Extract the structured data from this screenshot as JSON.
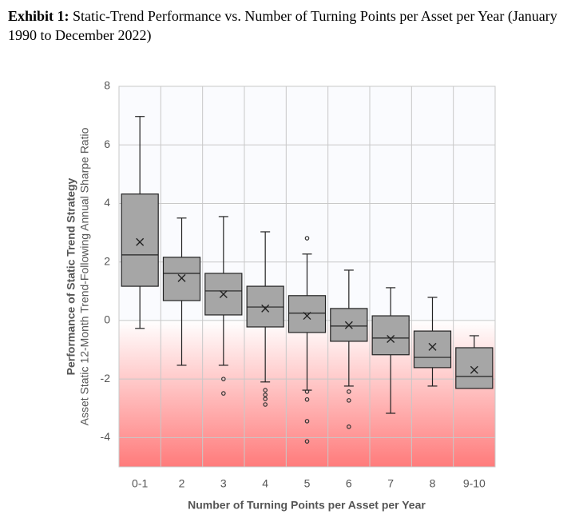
{
  "chart_data": {
    "type": "box",
    "title_label": "Exhibit 1:",
    "title": "Static-Trend Performance vs. Number of Turning Points per Asset per Year (January 1990 to December 2022)",
    "y_label": "Performance of Static Trend Strategy",
    "y_sublabel": "Asset Static 12-Month Trend-Following Annual Sharpe Ratio",
    "x_label": "Number of Turning Points per Asset per Year",
    "categories": [
      "0-1",
      "2",
      "3",
      "4",
      "5",
      "6",
      "7",
      "8",
      "9-10"
    ],
    "color": "#a6a6a6",
    "grid": true,
    "ylim": [
      -5,
      8
    ],
    "yticks": [
      -4,
      -2,
      0,
      2,
      4,
      6,
      8
    ],
    "boxes": [
      {
        "whislo": -0.27,
        "q1": 1.17,
        "med": 2.24,
        "q3": 4.32,
        "whishi": 6.97,
        "mean": 2.68,
        "fliers": []
      },
      {
        "whislo": -1.53,
        "q1": 0.68,
        "med": 1.61,
        "q3": 2.16,
        "whishi": 3.5,
        "mean": 1.45,
        "fliers": []
      },
      {
        "whislo": -1.53,
        "q1": 0.19,
        "med": 1.01,
        "q3": 1.61,
        "whishi": 3.55,
        "mean": 0.9,
        "fliers": [
          -2.0,
          -2.49
        ]
      },
      {
        "whislo": -2.1,
        "q1": -0.22,
        "med": 0.46,
        "q3": 1.17,
        "whishi": 3.03,
        "mean": 0.41,
        "fliers": [
          -2.38,
          -2.54,
          -2.68,
          -2.87
        ]
      },
      {
        "whislo": -2.38,
        "q1": -0.41,
        "med": 0.25,
        "q3": 0.85,
        "whishi": 2.27,
        "mean": 0.16,
        "fliers": [
          2.81,
          -2.43,
          -2.7,
          -3.44,
          -4.13
        ]
      },
      {
        "whislo": -2.24,
        "q1": -0.71,
        "med": -0.19,
        "q3": 0.41,
        "whishi": 1.72,
        "mean": -0.16,
        "fliers": [
          -2.43,
          -2.73,
          -3.63
        ]
      },
      {
        "whislo": -3.17,
        "q1": -1.17,
        "med": -0.6,
        "q3": 0.16,
        "whishi": 1.12,
        "mean": -0.63,
        "fliers": []
      },
      {
        "whislo": -2.24,
        "q1": -1.61,
        "med": -1.26,
        "q3": -0.36,
        "whishi": 0.79,
        "mean": -0.9,
        "fliers": []
      },
      {
        "whislo": -2.32,
        "q1": -2.32,
        "med": -1.91,
        "q3": -0.93,
        "whishi": -0.52,
        "mean": -1.69,
        "fliers": []
      }
    ]
  }
}
